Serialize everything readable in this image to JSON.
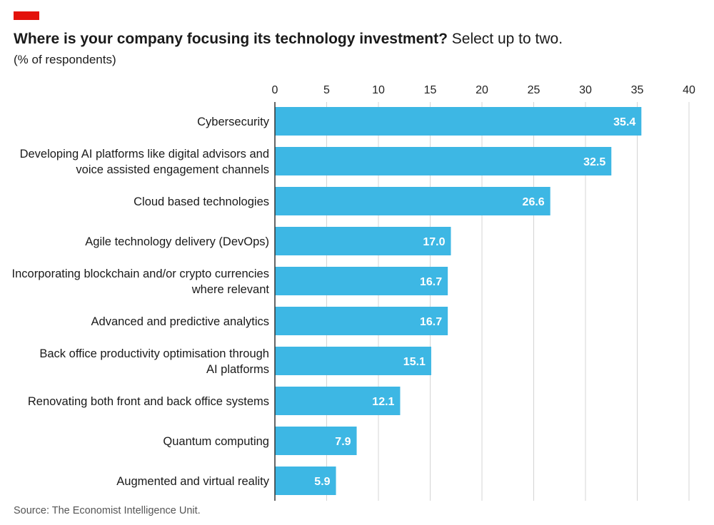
{
  "header": {
    "title_bold": "Where is your company focusing its technology investment?",
    "title_light": " Select up to two.",
    "subtitle": "(% of respondents)"
  },
  "footer": {
    "source": "Source: The Economist Intelligence Unit."
  },
  "colors": {
    "accent": "#e3120b",
    "bar": "#3db7e4",
    "grid": "#d4d4d4",
    "axis": "#333333",
    "value_label": "#ffffff"
  },
  "chart_data": {
    "type": "bar",
    "orientation": "horizontal",
    "title": "Where is your company focusing its technology investment? Select up to two.",
    "subtitle": "(% of respondents)",
    "xlim": [
      0,
      40
    ],
    "x_ticks": [
      0,
      5,
      10,
      15,
      20,
      25,
      30,
      35,
      40
    ],
    "grid": true,
    "categories": [
      [
        "Cybersecurity"
      ],
      [
        "Developing AI platforms like digital advisors and",
        "voice assisted engagement channels"
      ],
      [
        "Cloud based technologies"
      ],
      [
        "Agile technology delivery (DevOps)"
      ],
      [
        "Incorporating blockchain and/or crypto currencies",
        "where relevant"
      ],
      [
        "Advanced and predictive analytics"
      ],
      [
        "Back office productivity optimisation through",
        "AI platforms"
      ],
      [
        "Renovating both front and back office systems"
      ],
      [
        "Quantum computing"
      ],
      [
        "Augmented and virtual reality"
      ]
    ],
    "values": [
      35.4,
      32.5,
      26.6,
      17.0,
      16.7,
      16.7,
      15.1,
      12.1,
      7.9,
      5.9
    ],
    "value_labels": [
      "35.4",
      "32.5",
      "26.6",
      "17.0",
      "16.7",
      "16.7",
      "15.1",
      "12.1",
      "7.9",
      "5.9"
    ]
  }
}
